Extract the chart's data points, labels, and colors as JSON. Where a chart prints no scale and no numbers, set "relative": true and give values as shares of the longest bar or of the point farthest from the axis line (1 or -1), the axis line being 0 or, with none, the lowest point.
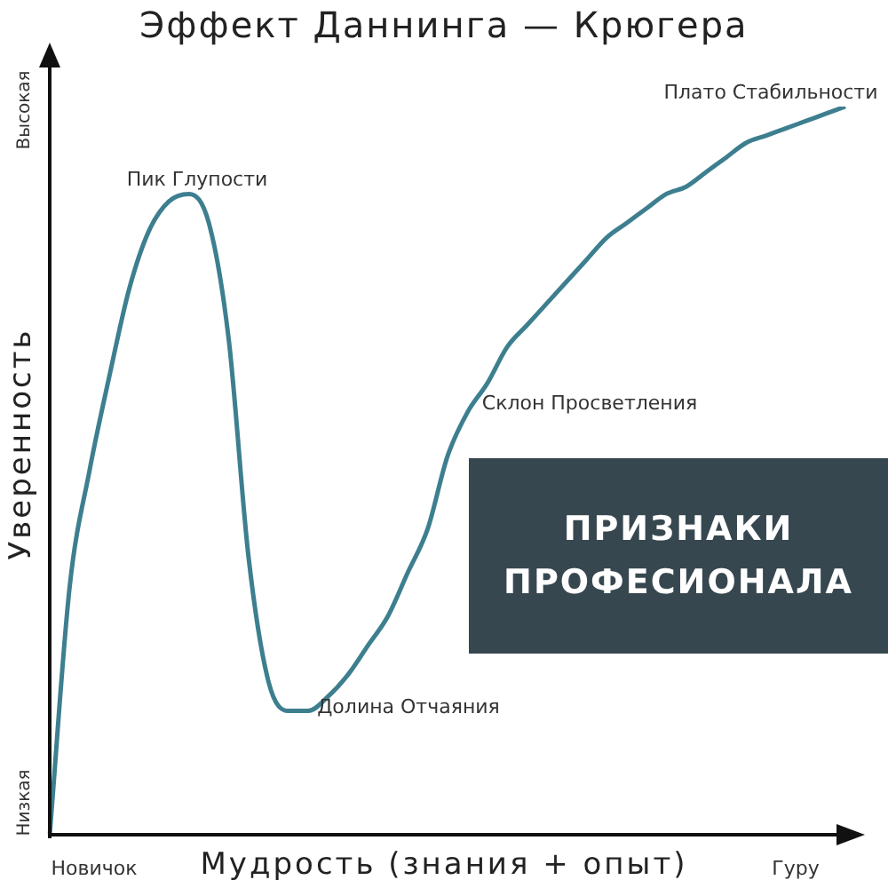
{
  "chart_data": {
    "type": "line",
    "title": "Эффект Даннинга — Крюгера",
    "xlabel": "Мудрость (знания + опыт)",
    "ylabel": "Уверенность",
    "relative": true,
    "categories": [
      null,
      null,
      null,
      null,
      null,
      null,
      null,
      null,
      null,
      null,
      null,
      null,
      null,
      null,
      null,
      null,
      null,
      null,
      null,
      null,
      null,
      null,
      null,
      null,
      null,
      null,
      null,
      null,
      null,
      null,
      null,
      null,
      null,
      null,
      null,
      null,
      null,
      null,
      null,
      null,
      null
    ],
    "series": [
      {
        "color": "#3d7f8f",
        "values": [
          0,
          0.34,
          0.5,
          0.63,
          0.75,
          0.83,
          0.87,
          0.88,
          0.84,
          0.68,
          0.38,
          0.21,
          0.17,
          0.17,
          0.19,
          0.22,
          0.26,
          0.3,
          0.36,
          0.42,
          0.52,
          0.58,
          0.62,
          0.67,
          0.7,
          0.73,
          0.76,
          0.79,
          0.82,
          0.84,
          0.86,
          0.88,
          0.89,
          0.91,
          0.93,
          0.95,
          0.96,
          0.97,
          0.98,
          0.99,
          1
        ]
      }
    ],
    "marker": "none",
    "legend": false,
    "annotations": [
      "Пик Глупости",
      "Долина Отчаяния",
      "Склон Просветления",
      "Плато Стабильности",
      "Высокая",
      "Низкая",
      "Новичок",
      "Гуру",
      "ПРИЗНАКИ ПРОФЕСИОНАЛА"
    ]
  }
}
